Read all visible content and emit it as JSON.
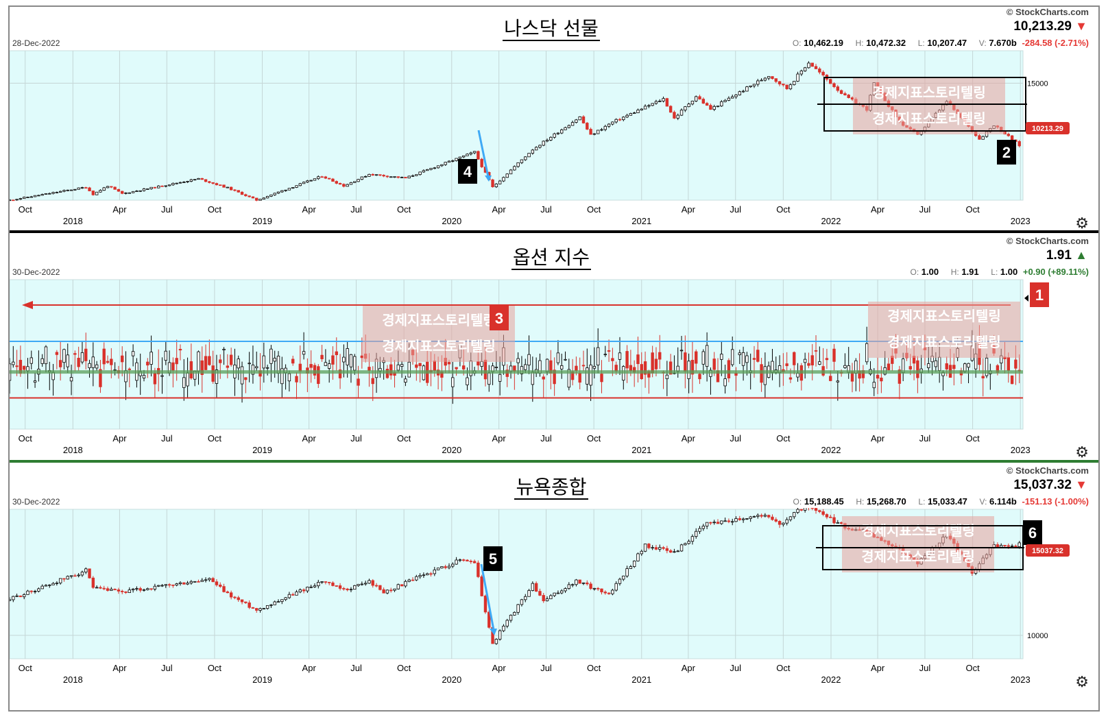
{
  "watermark": "경제지표스토리텔링",
  "colors": {
    "up": "#000000",
    "down": "#d9312b",
    "plot_bg": "#e0fbfb",
    "accent_blue": "#3fa9f5"
  },
  "panels": [
    {
      "title": "나스닥 선물",
      "date": "28-Dec-2022",
      "copyright": "© StockCharts.com",
      "last": "10,213.29",
      "direction": "down",
      "open": "10,462.19",
      "high": "10,472.32",
      "low": "10,207.47",
      "volume": "7.670b",
      "change": "-284.58 (-2.71%)",
      "label_o": "O:",
      "label_h": "H:",
      "label_l": "L:",
      "label_v": "V:",
      "price_tag": "10213.29",
      "callouts": [
        "4",
        "2"
      ]
    },
    {
      "title": "옵션 지수",
      "date": "30-Dec-2022",
      "copyright": "© StockCharts.com",
      "last": "1.91",
      "direction": "up",
      "open": "1.00",
      "high": "1.91",
      "low": "1.00",
      "change": "+0.90 (+89.11%)",
      "label_o": "O:",
      "label_h": "H:",
      "label_l": "L:",
      "callouts": [
        "3",
        "1"
      ]
    },
    {
      "title": "뉴욕종합",
      "date": "30-Dec-2022",
      "copyright": "© StockCharts.com",
      "last": "15,037.32",
      "direction": "down",
      "open": "15,188.45",
      "high": "15,268.70",
      "low": "15,033.47",
      "volume": "6.114b",
      "change": "-151.13 (-1.00%)",
      "label_o": "O:",
      "label_h": "H:",
      "label_l": "L:",
      "label_v": "V:",
      "price_tag": "15037.32",
      "callouts": [
        "5",
        "6"
      ]
    }
  ],
  "chart_data": [
    {
      "type": "candlestick",
      "title": "나스닥 선물",
      "frequency": "weekly",
      "x_range": [
        "2017-09-01",
        "2023-01-06"
      ],
      "y_ticks": [
        15000
      ],
      "ylim": [
        6000,
        17500
      ],
      "month_labels": [
        "Oct",
        "Apr",
        "Jul",
        "Oct",
        "Apr",
        "Jul",
        "Oct",
        "Apr",
        "Jul",
        "Oct",
        "Apr",
        "Jul",
        "Oct"
      ],
      "year_labels": [
        "2018",
        "2019",
        "2020",
        "2021",
        "2022",
        "2023"
      ],
      "anchors": [
        [
          "2017-09-01",
          6000
        ],
        [
          "2018-01-26",
          7000
        ],
        [
          "2018-02-09",
          6450
        ],
        [
          "2018-03-09",
          7100
        ],
        [
          "2018-04-06",
          6500
        ],
        [
          "2018-08-31",
          7650
        ],
        [
          "2018-10-26",
          6950
        ],
        [
          "2018-12-21",
          6000
        ],
        [
          "2019-04-26",
          7850
        ],
        [
          "2019-06-07",
          7100
        ],
        [
          "2019-07-26",
          8000
        ],
        [
          "2019-10-04",
          7700
        ],
        [
          "2020-02-14",
          9700
        ],
        [
          "2020-03-20",
          7000
        ],
        [
          "2020-06-05",
          9900
        ],
        [
          "2020-09-04",
          12400
        ],
        [
          "2020-09-25",
          11000
        ],
        [
          "2020-11-06",
          12000
        ],
        [
          "2021-02-12",
          13800
        ],
        [
          "2021-03-05",
          12300
        ],
        [
          "2021-04-16",
          14000
        ],
        [
          "2021-05-14",
          13000
        ],
        [
          "2021-09-03",
          15600
        ],
        [
          "2021-10-08",
          14600
        ],
        [
          "2021-11-19",
          16600
        ],
        [
          "2022-01-28",
          14000
        ],
        [
          "2022-03-11",
          13000
        ],
        [
          "2022-03-25",
          15000
        ],
        [
          "2022-05-13",
          12000
        ],
        [
          "2022-06-17",
          11000
        ],
        [
          "2022-08-12",
          13600
        ],
        [
          "2022-10-14",
          10700
        ],
        [
          "2022-11-11",
          11800
        ],
        [
          "2022-12-30",
          10213
        ]
      ]
    },
    {
      "type": "candlestick",
      "title": "옵션 지수",
      "frequency": "weekly",
      "x_range": [
        "2017-09-01",
        "2023-01-06"
      ],
      "ylim": [
        0.0,
        2.3
      ],
      "reference_lines": {
        "red_top": 1.91,
        "blue": 1.35,
        "green": 0.88,
        "red_bottom": 0.48
      },
      "month_labels": [
        "Oct",
        "Apr",
        "Jul",
        "Oct",
        "Apr",
        "Jul",
        "Oct",
        "Apr",
        "Jul",
        "Oct",
        "Apr",
        "Jul",
        "Oct"
      ],
      "year_labels": [
        "2018",
        "2019",
        "2020",
        "2021",
        "2022",
        "2023"
      ]
    },
    {
      "type": "candlestick",
      "title": "뉴욕종합",
      "frequency": "weekly",
      "x_range": [
        "2017-09-01",
        "2023-01-06"
      ],
      "y_ticks": [
        10000
      ],
      "ylim": [
        8700,
        17000
      ],
      "month_labels": [
        "Oct",
        "Apr",
        "Jul",
        "Oct",
        "Apr",
        "Jul",
        "Oct",
        "Apr",
        "Jul",
        "Oct",
        "Apr",
        "Jul",
        "Oct"
      ],
      "year_labels": [
        "2018",
        "2019",
        "2020",
        "2021",
        "2022",
        "2023"
      ],
      "anchors": [
        [
          "2017-09-01",
          12000
        ],
        [
          "2018-01-26",
          13600
        ],
        [
          "2018-02-09",
          12600
        ],
        [
          "2018-04-06",
          12400
        ],
        [
          "2018-09-21",
          13100
        ],
        [
          "2018-10-26",
          12300
        ],
        [
          "2018-12-21",
          11400
        ],
        [
          "2019-04-26",
          13000
        ],
        [
          "2019-06-07",
          12500
        ],
        [
          "2019-07-26",
          13000
        ],
        [
          "2019-08-23",
          12400
        ],
        [
          "2020-01-17",
          14200
        ],
        [
          "2020-02-14",
          14100
        ],
        [
          "2020-03-20",
          9500
        ],
        [
          "2020-04-03",
          10200
        ],
        [
          "2020-06-05",
          12800
        ],
        [
          "2020-06-26",
          11900
        ],
        [
          "2020-08-28",
          13000
        ],
        [
          "2020-10-30",
          12300
        ],
        [
          "2021-01-08",
          15000
        ],
        [
          "2021-03-05",
          14600
        ],
        [
          "2021-05-07",
          16200
        ],
        [
          "2021-08-20",
          16700
        ],
        [
          "2021-09-24",
          16200
        ],
        [
          "2021-11-12",
          17200
        ],
        [
          "2022-01-28",
          16000
        ],
        [
          "2022-03-04",
          15800
        ],
        [
          "2022-05-13",
          14800
        ],
        [
          "2022-06-17",
          14000
        ],
        [
          "2022-08-12",
          15600
        ],
        [
          "2022-09-30",
          13500
        ],
        [
          "2022-11-11",
          15000
        ],
        [
          "2022-12-30",
          15037
        ]
      ]
    }
  ]
}
